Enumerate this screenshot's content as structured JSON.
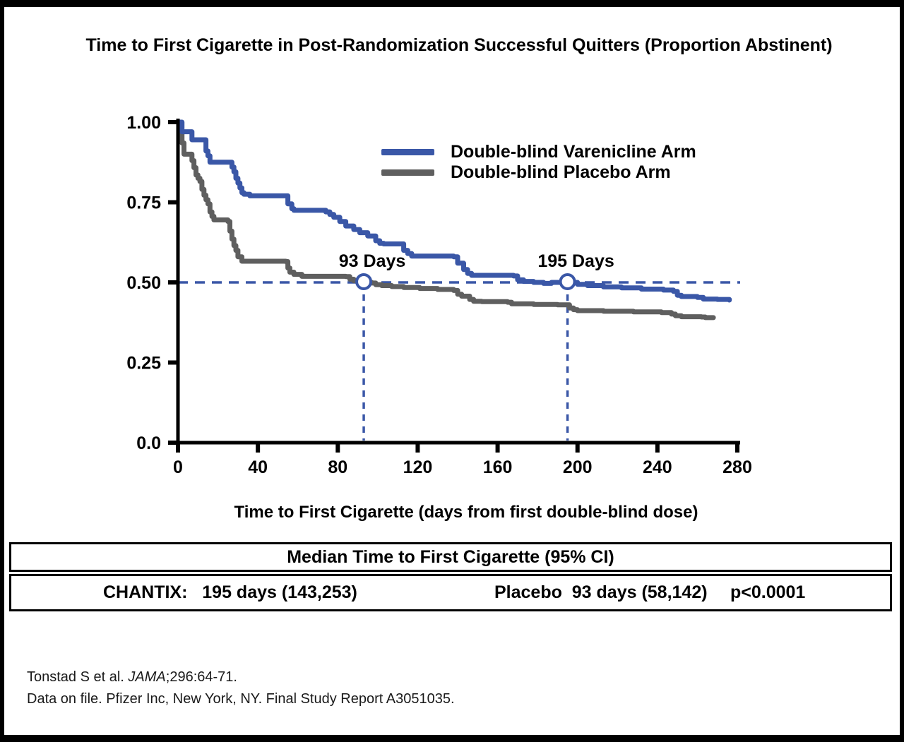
{
  "chart_data": {
    "type": "line",
    "subtype": "kaplan-meier-step",
    "title": "Time to First Cigarette in Post-Randomization Successful Quitters (Proportion Abstinent)",
    "xlabel": "Time to First Cigarette (days from first double-blind dose)",
    "ylabel": "",
    "xlim": [
      0,
      280
    ],
    "ylim": [
      0,
      1
    ],
    "x_ticks": [
      0,
      40,
      80,
      120,
      160,
      200,
      240,
      280
    ],
    "y_ticks": [
      {
        "v": 0,
        "label": "0.0"
      },
      {
        "v": 0.25,
        "label": "0.25"
      },
      {
        "v": 0.5,
        "label": "0.50"
      },
      {
        "v": 0.75,
        "label": "0.75"
      },
      {
        "v": 1,
        "label": "1.00"
      }
    ],
    "grid": false,
    "legend_position": "upper-right-inside",
    "reference_line": {
      "y": 0.5,
      "style": "dashed"
    },
    "median_markers": [
      {
        "x": 93,
        "y": 0.5,
        "label": "93 Days"
      },
      {
        "x": 195,
        "y": 0.5,
        "label": "195 Days"
      }
    ],
    "series": [
      {
        "name": "Double-blind Varenicline Arm",
        "color": "#3a57a7",
        "points": [
          [
            0,
            1.0
          ],
          [
            2,
            1.0
          ],
          [
            2,
            0.97
          ],
          [
            6,
            0.97
          ],
          [
            7,
            0.945
          ],
          [
            13,
            0.945
          ],
          [
            14,
            0.91
          ],
          [
            15,
            0.895
          ],
          [
            16,
            0.875
          ],
          [
            26,
            0.875
          ],
          [
            27,
            0.86
          ],
          [
            28,
            0.845
          ],
          [
            29,
            0.825
          ],
          [
            30,
            0.81
          ],
          [
            31,
            0.795
          ],
          [
            32,
            0.78
          ],
          [
            33,
            0.775
          ],
          [
            36,
            0.77
          ],
          [
            54,
            0.77
          ],
          [
            55,
            0.745
          ],
          [
            57,
            0.73
          ],
          [
            58,
            0.725
          ],
          [
            74,
            0.72
          ],
          [
            76,
            0.712
          ],
          [
            78,
            0.703
          ],
          [
            81,
            0.69
          ],
          [
            84,
            0.676
          ],
          [
            88,
            0.665
          ],
          [
            91,
            0.655
          ],
          [
            95,
            0.645
          ],
          [
            99,
            0.63
          ],
          [
            101,
            0.622
          ],
          [
            103,
            0.62
          ],
          [
            111,
            0.62
          ],
          [
            113,
            0.6
          ],
          [
            115,
            0.59
          ],
          [
            117,
            0.582
          ],
          [
            138,
            0.58
          ],
          [
            140,
            0.56
          ],
          [
            143,
            0.54
          ],
          [
            145,
            0.528
          ],
          [
            147,
            0.522
          ],
          [
            168,
            0.52
          ],
          [
            170,
            0.508
          ],
          [
            173,
            0.503
          ],
          [
            178,
            0.5
          ],
          [
            183,
            0.497
          ],
          [
            187,
            0.5
          ],
          [
            195,
            0.5
          ],
          [
            200,
            0.494
          ],
          [
            205,
            0.49
          ],
          [
            213,
            0.486
          ],
          [
            222,
            0.483
          ],
          [
            232,
            0.479
          ],
          [
            243,
            0.476
          ],
          [
            248,
            0.472
          ],
          [
            250,
            0.46
          ],
          [
            252,
            0.456
          ],
          [
            260,
            0.453
          ],
          [
            263,
            0.448
          ],
          [
            270,
            0.447
          ],
          [
            276,
            0.445
          ]
        ]
      },
      {
        "name": "Double-blind Placebo Arm",
        "color": "#5f5f5f",
        "points": [
          [
            0,
            1.0
          ],
          [
            1,
            1.0
          ],
          [
            1,
            0.97
          ],
          [
            2,
            0.935
          ],
          [
            3,
            0.9
          ],
          [
            6,
            0.9
          ],
          [
            7,
            0.88
          ],
          [
            8,
            0.858
          ],
          [
            9,
            0.835
          ],
          [
            10,
            0.825
          ],
          [
            11,
            0.815
          ],
          [
            12,
            0.79
          ],
          [
            13,
            0.772
          ],
          [
            14,
            0.758
          ],
          [
            15,
            0.745
          ],
          [
            16,
            0.72
          ],
          [
            17,
            0.706
          ],
          [
            18,
            0.695
          ],
          [
            25,
            0.69
          ],
          [
            26,
            0.66
          ],
          [
            27,
            0.635
          ],
          [
            28,
            0.615
          ],
          [
            29,
            0.6
          ],
          [
            30,
            0.58
          ],
          [
            32,
            0.566
          ],
          [
            54,
            0.565
          ],
          [
            55,
            0.545
          ],
          [
            56,
            0.532
          ],
          [
            58,
            0.525
          ],
          [
            62,
            0.519
          ],
          [
            84,
            0.518
          ],
          [
            86,
            0.51
          ],
          [
            88,
            0.505
          ],
          [
            92,
            0.502
          ],
          [
            93,
            0.5
          ],
          [
            97,
            0.498
          ],
          [
            99,
            0.493
          ],
          [
            102,
            0.49
          ],
          [
            107,
            0.487
          ],
          [
            113,
            0.484
          ],
          [
            121,
            0.481
          ],
          [
            130,
            0.478
          ],
          [
            138,
            0.475
          ],
          [
            140,
            0.463
          ],
          [
            142,
            0.457
          ],
          [
            146,
            0.447
          ],
          [
            148,
            0.441
          ],
          [
            152,
            0.44
          ],
          [
            165,
            0.438
          ],
          [
            167,
            0.433
          ],
          [
            178,
            0.431
          ],
          [
            190,
            0.43
          ],
          [
            196,
            0.42
          ],
          [
            198,
            0.415
          ],
          [
            200,
            0.412
          ],
          [
            213,
            0.41
          ],
          [
            228,
            0.408
          ],
          [
            242,
            0.406
          ],
          [
            247,
            0.401
          ],
          [
            249,
            0.396
          ],
          [
            252,
            0.393
          ],
          [
            262,
            0.392
          ],
          [
            264,
            0.39
          ],
          [
            268,
            0.39
          ]
        ]
      }
    ]
  },
  "table": {
    "header": "Median Time to First Cigarette (95% CI)",
    "row": {
      "chantix": "CHANTIX:   195 days (143,253)",
      "placebo": "Placebo  93 days (58,142)",
      "pvalue": "p<0.0001"
    }
  },
  "footer": {
    "line1_pre": "Tonstad S et al. ",
    "line1_italic": "JAMA",
    "line1_post": ";296:64-71.",
    "line2": "Data on file. Pfizer Inc, New York, NY. Final Study Report A3051035."
  },
  "colors": {
    "varenicline": "#3a57a7",
    "placebo": "#5f5f5f",
    "reference": "#3a57a7",
    "axis": "#000000",
    "frame": "#000000"
  }
}
